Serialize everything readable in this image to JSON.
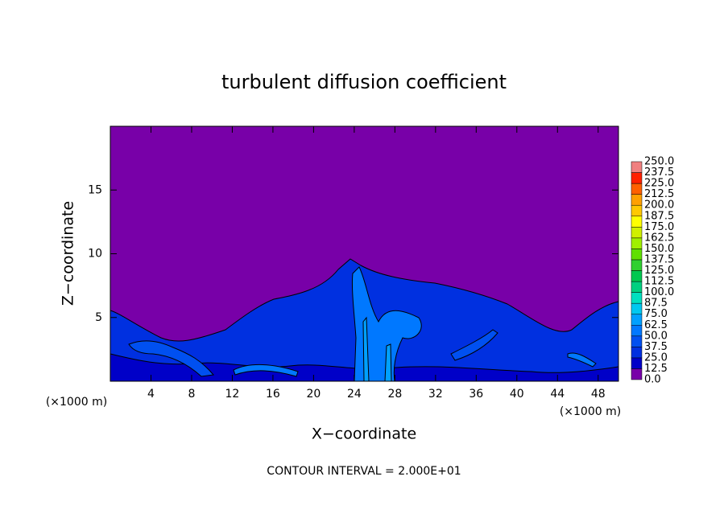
{
  "chart_data": {
    "type": "contour",
    "title": "turbulent diffusion coefficient",
    "xlabel": "X−coordinate",
    "ylabel": "Z−coordinate",
    "x_unit_label": "(×1000 m)",
    "note": "CONTOUR INTERVAL = 2.000E+01",
    "xlim": [
      0,
      50
    ],
    "ylim": [
      0,
      20
    ],
    "xticks": [
      4,
      8,
      12,
      16,
      20,
      24,
      28,
      32,
      36,
      40,
      44,
      48
    ],
    "yticks": [
      5,
      10,
      15
    ],
    "colorbar": {
      "levels": [
        {
          "value": 0,
          "label": "0.0"
        },
        {
          "value": 12.5,
          "label": "12.5"
        },
        {
          "value": 25,
          "label": "25.0"
        },
        {
          "value": 37.5,
          "label": "37.5"
        },
        {
          "value": 50,
          "label": "50.0"
        },
        {
          "value": 62.5,
          "label": "62.5"
        },
        {
          "value": 75,
          "label": "75.0"
        },
        {
          "value": 87.5,
          "label": "87.5"
        },
        {
          "value": 100,
          "label": "100.0"
        },
        {
          "value": 112.5,
          "label": "112.5"
        },
        {
          "value": 125,
          "label": "125.0"
        },
        {
          "value": 137.5,
          "label": "137.5"
        },
        {
          "value": 150,
          "label": "150.0"
        },
        {
          "value": 162.5,
          "label": "162.5"
        },
        {
          "value": 175,
          "label": "175.0"
        },
        {
          "value": 187.5,
          "label": "187.5"
        },
        {
          "value": 200,
          "label": "200.0"
        },
        {
          "value": 212.5,
          "label": "212.5"
        },
        {
          "value": 225,
          "label": "225.0"
        },
        {
          "value": 237.5,
          "label": "237.5"
        },
        {
          "value": 250,
          "label": "250.0"
        }
      ],
      "colors": [
        "#7800a8",
        "#0000c8",
        "#0030e0",
        "#0050f0",
        "#0078ff",
        "#00a0ff",
        "#00c8f0",
        "#00e0c0",
        "#00d080",
        "#00c850",
        "#30d030",
        "#60e000",
        "#a0f000",
        "#d0f000",
        "#ffff00",
        "#ffc800",
        "#ffa000",
        "#ff6000",
        "#ff2000",
        "#f08080"
      ]
    }
  }
}
